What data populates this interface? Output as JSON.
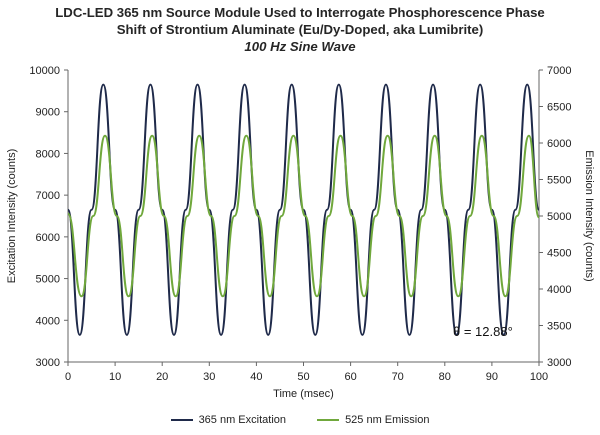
{
  "title_lines": [
    "LDC-LED 365 nm Source Module Used to Interrogate Phosphorescence Phase",
    "Shift of Strontium Aluminate (Eu/Dy-Doped, aka Lumibrite)"
  ],
  "subtitle": "100 Hz Sine Wave",
  "chart_data": {
    "type": "line",
    "xlabel": "Time (msec)",
    "ylabel": "Excitation Intensity (counts)",
    "y2label": "Emission Intensity (counts)",
    "xlim": [
      0,
      100
    ],
    "ylim": [
      3000,
      10000
    ],
    "y2lim": [
      3000,
      7000
    ],
    "x_ticks": [
      0,
      10,
      20,
      30,
      40,
      50,
      60,
      70,
      80,
      90,
      100
    ],
    "y_ticks": [
      3000,
      4000,
      5000,
      6000,
      7000,
      8000,
      9000,
      10000
    ],
    "y2_ticks": [
      3000,
      3500,
      4000,
      4500,
      5000,
      5500,
      6000,
      6500,
      7000
    ],
    "grid": false,
    "legend_position": "bottom",
    "annotation": "θ = 12.88°",
    "series": [
      {
        "name": "365 nm Excitation",
        "axis": "left",
        "color": "#1f2a4a",
        "x": [
          0,
          2.5,
          5,
          7.5,
          10,
          12.5,
          15,
          17.5,
          20,
          22.5,
          25,
          27.5,
          30,
          32.5,
          35,
          37.5,
          40,
          42.5,
          45,
          47.5,
          50,
          52.5,
          55,
          57.5,
          60,
          62.5,
          65,
          67.5,
          70,
          72.5,
          75,
          77.5,
          80,
          82.5,
          85,
          87.5,
          90,
          92.5,
          95,
          97.5,
          100
        ],
        "values": [
          6650,
          3650,
          6650,
          9650,
          6650,
          3650,
          6650,
          9650,
          6650,
          3650,
          6650,
          9650,
          6650,
          3650,
          6650,
          9650,
          6650,
          3650,
          6650,
          9650,
          6650,
          3650,
          6650,
          9650,
          6650,
          3650,
          6650,
          9650,
          6650,
          3650,
          6650,
          9650,
          6650,
          3650,
          6650,
          9650,
          6650,
          3650,
          6650,
          9650,
          6650
        ]
      },
      {
        "name": "525 nm Emission",
        "axis": "right",
        "color": "#70a83c",
        "x": [
          0,
          2.86,
          5.36,
          7.86,
          10.36,
          12.86,
          15.36,
          17.86,
          20.36,
          22.86,
          25.36,
          27.86,
          30.36,
          32.86,
          35.36,
          37.86,
          40.36,
          42.86,
          45.36,
          47.86,
          50.36,
          52.86,
          55.36,
          57.86,
          60.36,
          62.86,
          65.36,
          67.86,
          70.36,
          72.86,
          75.36,
          77.86,
          80.36,
          82.86,
          85.36,
          87.86,
          90.36,
          92.86,
          95.36,
          97.86,
          100
        ],
        "values": [
          5033,
          3900,
          5000,
          6100,
          5000,
          3900,
          5000,
          6100,
          5000,
          3900,
          5000,
          6100,
          5000,
          3900,
          5000,
          6100,
          5000,
          3900,
          5000,
          6100,
          5000,
          3900,
          5000,
          6100,
          5000,
          3900,
          5000,
          6100,
          5000,
          3900,
          5000,
          6100,
          5000,
          3900,
          5000,
          6100,
          5000,
          3900,
          5000,
          6100,
          4980
        ]
      }
    ]
  }
}
